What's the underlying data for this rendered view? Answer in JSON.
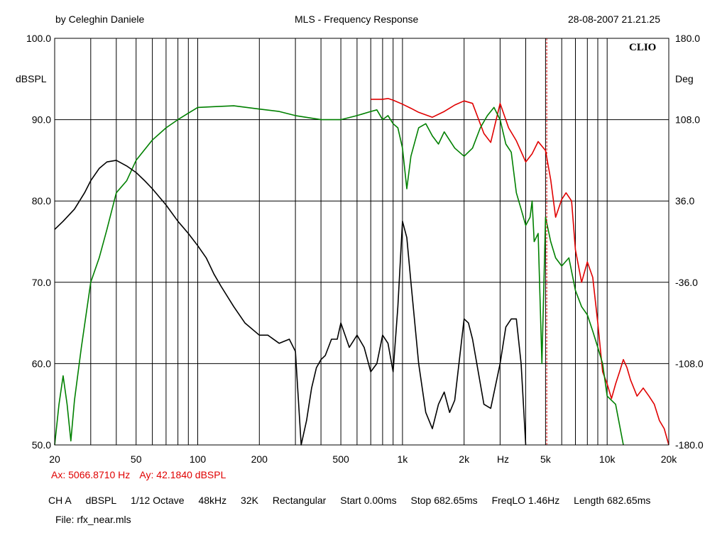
{
  "header": {
    "author": "by Celeghin Daniele",
    "title": "MLS - Frequency Response",
    "datetime": "28-08-2007 21.21.25"
  },
  "brand": "CLIO",
  "cursor": {
    "ax_label": "Ax: 5066.8710 Hz",
    "ay_label": "Ay: 42.1840 dBSPL",
    "x_value": 5066.871,
    "color": "#e00000"
  },
  "settings": {
    "channel": "CH A",
    "unit": "dBSPL",
    "smoothing": "1/12 Octave",
    "sample_rate": "48kHz",
    "size": "32K",
    "window": "Rectangular",
    "start": "Start 0.00ms",
    "stop": "Stop 682.65ms",
    "freqlo": "FreqLO 1.46Hz",
    "length": "Length 682.65ms"
  },
  "file": {
    "label": "File: rfx_near.mls"
  },
  "colors": {
    "background": "#ffffff",
    "grid": "#000000",
    "red_trace": "#e00000",
    "green_trace": "#008000",
    "black_trace": "#000000"
  },
  "chart_data": {
    "type": "line",
    "title": "MLS - Frequency Response",
    "xlabel": "Hz",
    "ylabel": "dBSPL",
    "y2label": "Deg",
    "x_scale": "log",
    "xlim": [
      20,
      20000
    ],
    "ylim": [
      50,
      100
    ],
    "y2lim": [
      -180,
      180
    ],
    "grid": true,
    "x_ticks": [
      {
        "value": 20,
        "label": "20"
      },
      {
        "value": 50,
        "label": "50"
      },
      {
        "value": 100,
        "label": "100"
      },
      {
        "value": 200,
        "label": "200"
      },
      {
        "value": 500,
        "label": "500"
      },
      {
        "value": 1000,
        "label": "1k"
      },
      {
        "value": 2000,
        "label": "2k"
      },
      {
        "value": 5000,
        "label": "5k"
      },
      {
        "value": 10000,
        "label": "10k"
      },
      {
        "value": 20000,
        "label": "20k"
      }
    ],
    "x_unit_label": {
      "value": 3100,
      "label": "Hz"
    },
    "y_ticks": [
      {
        "value": 100,
        "label": "100.0"
      },
      {
        "value": 90,
        "label": "90.0"
      },
      {
        "value": 80,
        "label": "80.0"
      },
      {
        "value": 70,
        "label": "70.0"
      },
      {
        "value": 60,
        "label": "60.0"
      },
      {
        "value": 50,
        "label": "50.0"
      }
    ],
    "y2_ticks": [
      {
        "value": 180,
        "label": "180.0"
      },
      {
        "value": 108,
        "label": "108.0"
      },
      {
        "value": 36,
        "label": "36.0"
      },
      {
        "value": -36,
        "label": "-36.0"
      },
      {
        "value": -108,
        "label": "-108.0"
      },
      {
        "value": -180,
        "label": "-180.0"
      }
    ],
    "series": [
      {
        "color": "#e00000",
        "axis": "left",
        "x": [
          700,
          750,
          800,
          850,
          900,
          1000,
          1100,
          1200,
          1400,
          1600,
          1800,
          2000,
          2200,
          2500,
          2700,
          3000,
          3300,
          3600,
          4000,
          4300,
          4600,
          5000,
          5300,
          5600,
          6000,
          6300,
          6700,
          7000,
          7500,
          8000,
          8500,
          9000,
          9500,
          10000,
          10500,
          11000,
          11500,
          12000,
          12500,
          13000,
          14000,
          15000,
          16000,
          17000,
          18000,
          19000,
          20000
        ],
        "values": [
          92.5,
          92.5,
          92.5,
          92.6,
          92.4,
          91.9,
          91.4,
          90.9,
          90.3,
          91.0,
          91.8,
          92.3,
          92.0,
          88.3,
          87.2,
          92.0,
          89.0,
          87.4,
          84.8,
          85.8,
          87.3,
          86.2,
          82.6,
          78.0,
          80.2,
          81.0,
          80.0,
          74.0,
          70.0,
          72.5,
          70.6,
          65.0,
          59.0,
          57.5,
          55.7,
          57.5,
          59.0,
          60.5,
          59.5,
          58.0,
          56.0,
          57.0,
          56.0,
          55.0,
          53.0,
          52.0,
          50.0
        ]
      },
      {
        "color": "#008000",
        "axis": "left",
        "x": [
          20,
          21,
          22,
          23,
          24,
          25,
          27,
          30,
          33,
          36,
          40,
          45,
          50,
          60,
          70,
          80,
          90,
          100,
          120,
          150,
          200,
          250,
          300,
          400,
          500,
          600,
          700,
          750,
          800,
          850,
          900,
          950,
          1000,
          1050,
          1100,
          1200,
          1300,
          1400,
          1500,
          1600,
          1800,
          2000,
          2200,
          2400,
          2600,
          2800,
          3000,
          3200,
          3400,
          3600,
          3800,
          4000,
          4200,
          4300,
          4400,
          4600,
          4800,
          5000,
          5300,
          5600,
          6000,
          6500,
          7000,
          7500,
          8000,
          8500,
          9000,
          9500,
          10000,
          11000,
          12000
        ],
        "values": [
          50.0,
          55.0,
          58.5,
          55.0,
          50.5,
          55.5,
          62.0,
          70.0,
          73.0,
          76.5,
          81.0,
          82.5,
          85.0,
          87.5,
          89.0,
          90.0,
          90.8,
          91.5,
          91.6,
          91.7,
          91.3,
          91.0,
          90.5,
          90.0,
          90.0,
          90.5,
          91.0,
          91.2,
          90.0,
          90.5,
          89.5,
          89.0,
          86.5,
          81.5,
          85.5,
          89.0,
          89.5,
          88.0,
          87.0,
          88.5,
          86.5,
          85.5,
          86.5,
          89.0,
          90.5,
          91.5,
          90.0,
          87.0,
          86.0,
          81.0,
          79.0,
          77.0,
          78.0,
          80.0,
          75.0,
          76.0,
          60.0,
          78.0,
          75.0,
          73.0,
          72.0,
          73.0,
          69.0,
          67.0,
          66.0,
          64.0,
          62.0,
          60.0,
          56.0,
          55.0,
          50.0
        ]
      },
      {
        "color": "#000000",
        "axis": "left",
        "x": [
          20,
          22,
          25,
          28,
          30,
          33,
          36,
          40,
          45,
          50,
          55,
          60,
          70,
          80,
          90,
          100,
          110,
          120,
          130,
          150,
          170,
          200,
          220,
          250,
          280,
          300,
          320,
          340,
          360,
          380,
          400,
          420,
          450,
          480,
          500,
          550,
          600,
          650,
          700,
          750,
          800,
          850,
          900,
          950,
          1000,
          1050,
          1100,
          1200,
          1300,
          1400,
          1500,
          1600,
          1700,
          1800,
          2000,
          2100,
          2200,
          2500,
          2700,
          3000,
          3200,
          3400,
          3600,
          3800,
          4000
        ],
        "values": [
          76.5,
          77.5,
          79.0,
          81.0,
          82.5,
          84.0,
          84.8,
          85.0,
          84.3,
          83.5,
          82.5,
          81.5,
          79.5,
          77.5,
          76.0,
          74.5,
          73.0,
          71.0,
          69.5,
          67.0,
          65.0,
          63.5,
          63.5,
          62.5,
          63.0,
          61.5,
          50.0,
          53.0,
          57.0,
          59.5,
          60.5,
          61.0,
          63.0,
          63.0,
          65.0,
          62.0,
          63.5,
          62.0,
          59.0,
          60.0,
          63.5,
          62.5,
          59.0,
          67.0,
          77.5,
          75.5,
          70.0,
          60.0,
          54.0,
          52.0,
          55.0,
          56.5,
          54.0,
          55.5,
          65.5,
          65.0,
          63.0,
          55.0,
          54.5,
          60.0,
          64.5,
          65.5,
          65.5,
          60.0,
          50.0
        ]
      }
    ]
  }
}
